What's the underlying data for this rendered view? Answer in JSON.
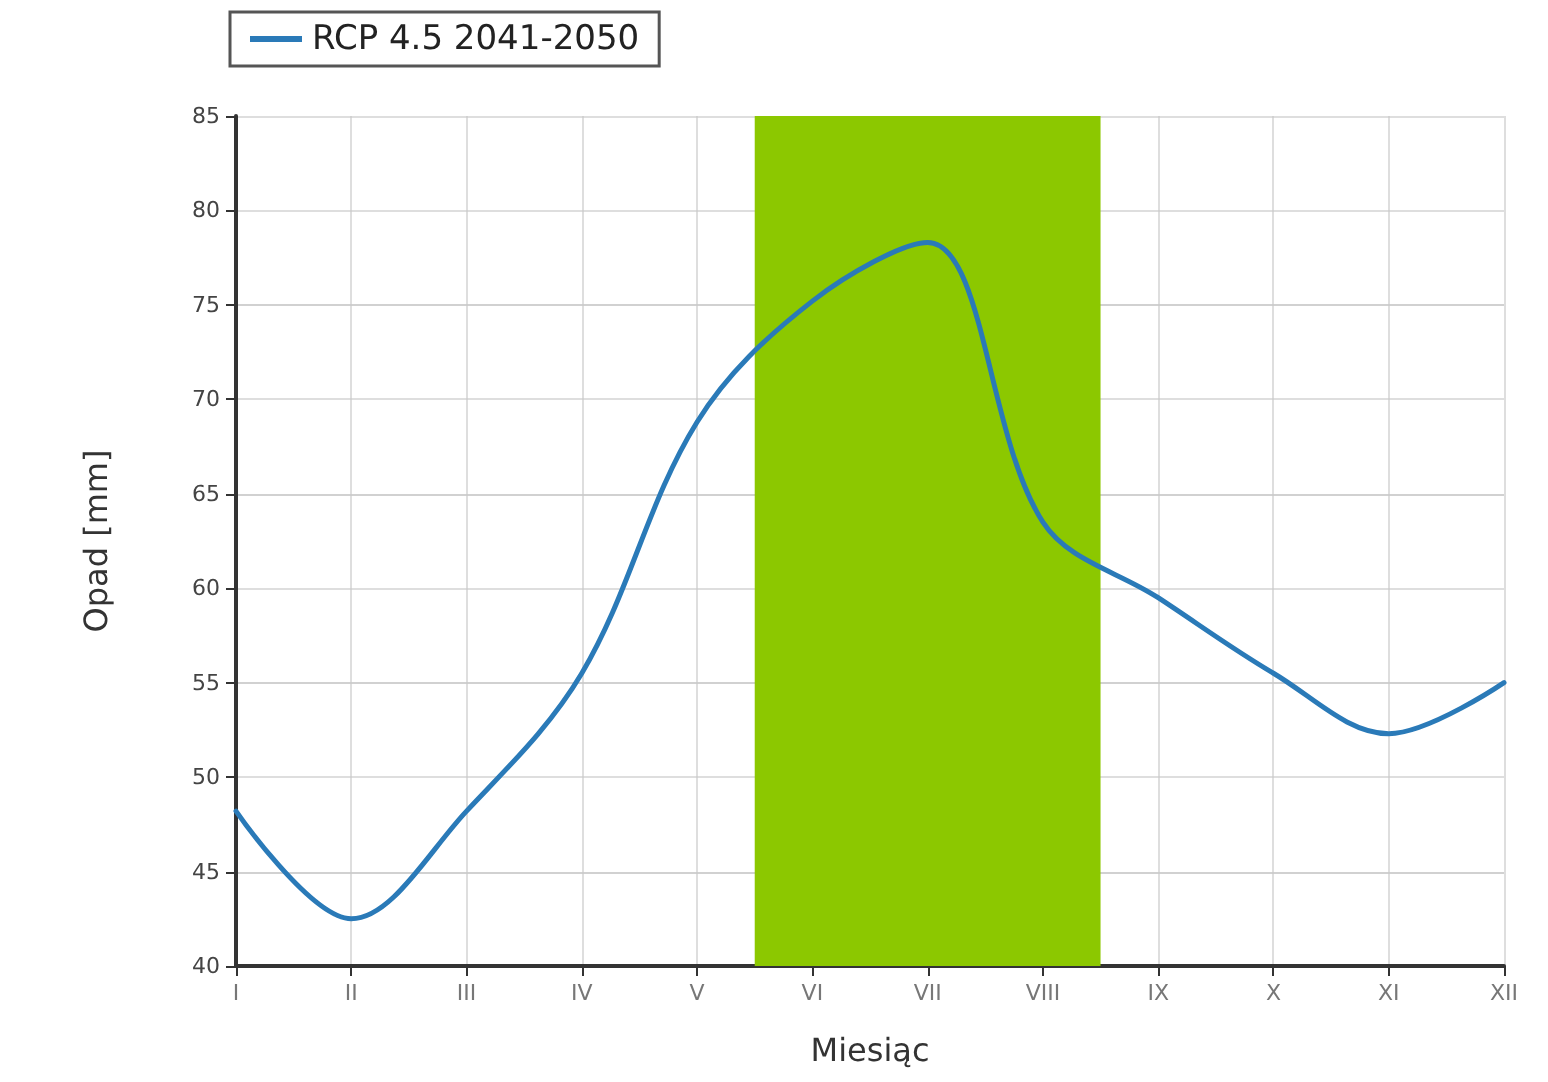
{
  "chart_data": {
    "type": "line",
    "xlabel": "Miesiąc",
    "ylabel": "Opad [mm]",
    "categories": [
      "I",
      "II",
      "III",
      "IV",
      "V",
      "VI",
      "VII",
      "VIII",
      "IX",
      "X",
      "XI",
      "XII"
    ],
    "ylim": [
      40,
      85
    ],
    "yticks": [
      40,
      45,
      50,
      55,
      60,
      65,
      70,
      75,
      80,
      85
    ],
    "series": [
      {
        "name": "RCP 4.5 2041-2050",
        "color": "#2a7ab8",
        "values": [
          48.2,
          42.5,
          48.2,
          55.5,
          68.8,
          75.2,
          78.3,
          63.5,
          59.5,
          55.5,
          52.3,
          55.0
        ]
      }
    ],
    "bands": [
      {
        "axis": "x",
        "from": "VI",
        "to": "VIII",
        "color": "#8cc800"
      }
    ],
    "grid": true,
    "legend": "top left",
    "marker": "none",
    "line_style": "solid"
  }
}
